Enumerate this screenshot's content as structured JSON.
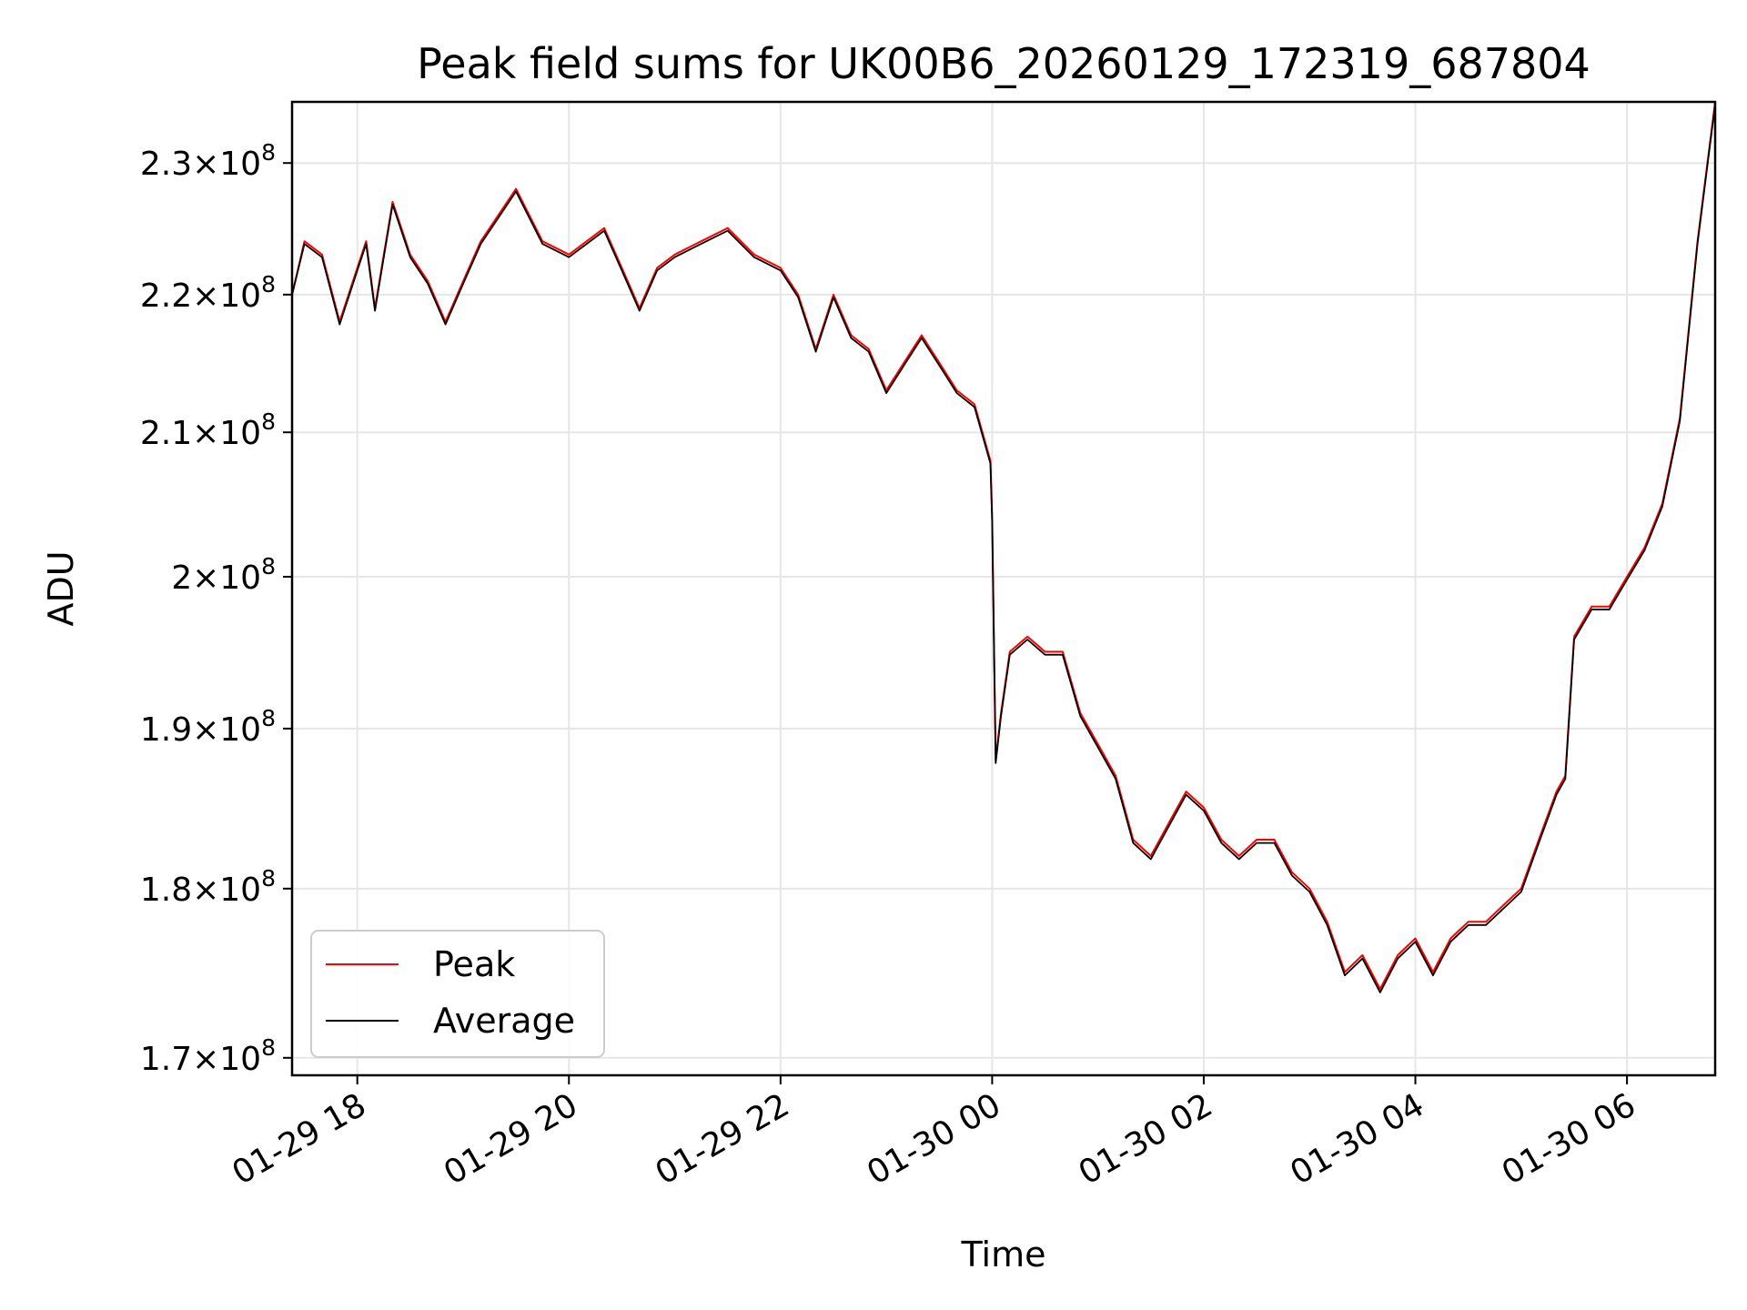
{
  "chart_data": {
    "type": "line",
    "title": "Peak field sums for UK00B6_20260129_172319_687804",
    "xlabel": "Time",
    "ylabel": "ADU",
    "yscale": "log",
    "grid": true,
    "legend_placement": "lower-left",
    "xlim": [
      "2026-01-29 17:23",
      "2026-01-30 06:50"
    ],
    "ylim": [
      169000000,
      234800000
    ],
    "x_ticks": [
      {
        "value": "2026-01-29 18:00",
        "label": "01-29 18"
      },
      {
        "value": "2026-01-29 20:00",
        "label": "01-29 20"
      },
      {
        "value": "2026-01-29 22:00",
        "label": "01-29 22"
      },
      {
        "value": "2026-01-30 00:00",
        "label": "01-30 00"
      },
      {
        "value": "2026-01-30 02:00",
        "label": "01-30 02"
      },
      {
        "value": "2026-01-30 04:00",
        "label": "01-30 04"
      },
      {
        "value": "2026-01-30 06:00",
        "label": "01-30 06"
      }
    ],
    "y_ticks": [
      {
        "value": 170000000,
        "mantissa": "1.7",
        "exponent": "8"
      },
      {
        "value": 180000000,
        "mantissa": "1.8",
        "exponent": "8"
      },
      {
        "value": 190000000,
        "mantissa": "1.9",
        "exponent": "8"
      },
      {
        "value": 200000000,
        "mantissa": "2",
        "exponent": "8"
      },
      {
        "value": 210000000,
        "mantissa": "2.1",
        "exponent": "8"
      },
      {
        "value": 220000000,
        "mantissa": "2.2",
        "exponent": "8"
      },
      {
        "value": 230000000,
        "mantissa": "2.3",
        "exponent": "8"
      }
    ],
    "times_prefix_note": "x values are timestamps",
    "x": [
      "2026-01-29 17:23",
      "2026-01-29 17:30",
      "2026-01-29 17:40",
      "2026-01-29 17:50",
      "2026-01-29 18:00",
      "2026-01-29 18:05",
      "2026-01-29 18:10",
      "2026-01-29 18:15",
      "2026-01-29 18:20",
      "2026-01-29 18:30",
      "2026-01-29 18:40",
      "2026-01-29 18:50",
      "2026-01-29 19:00",
      "2026-01-29 19:10",
      "2026-01-29 19:20",
      "2026-01-29 19:30",
      "2026-01-29 19:45",
      "2026-01-29 20:00",
      "2026-01-29 20:10",
      "2026-01-29 20:20",
      "2026-01-29 20:30",
      "2026-01-29 20:40",
      "2026-01-29 20:50",
      "2026-01-29 21:00",
      "2026-01-29 21:15",
      "2026-01-29 21:30",
      "2026-01-29 21:45",
      "2026-01-29 22:00",
      "2026-01-29 22:10",
      "2026-01-29 22:20",
      "2026-01-29 22:30",
      "2026-01-29 22:40",
      "2026-01-29 22:50",
      "2026-01-29 23:00",
      "2026-01-29 23:10",
      "2026-01-29 23:20",
      "2026-01-29 23:30",
      "2026-01-29 23:40",
      "2026-01-29 23:50",
      "2026-01-29 23:59",
      "2026-01-30 00:00",
      "2026-01-30 00:02",
      "2026-01-30 00:05",
      "2026-01-30 00:10",
      "2026-01-30 00:20",
      "2026-01-30 00:30",
      "2026-01-30 00:40",
      "2026-01-30 00:50",
      "2026-01-30 01:00",
      "2026-01-30 01:10",
      "2026-01-30 01:20",
      "2026-01-30 01:30",
      "2026-01-30 01:40",
      "2026-01-30 01:50",
      "2026-01-30 02:00",
      "2026-01-30 02:10",
      "2026-01-30 02:20",
      "2026-01-30 02:30",
      "2026-01-30 02:40",
      "2026-01-30 02:50",
      "2026-01-30 03:00",
      "2026-01-30 03:10",
      "2026-01-30 03:20",
      "2026-01-30 03:30",
      "2026-01-30 03:40",
      "2026-01-30 03:50",
      "2026-01-30 04:00",
      "2026-01-30 04:10",
      "2026-01-30 04:20",
      "2026-01-30 04:30",
      "2026-01-30 04:40",
      "2026-01-30 04:50",
      "2026-01-30 05:00",
      "2026-01-30 05:10",
      "2026-01-30 05:20",
      "2026-01-30 05:25",
      "2026-01-30 05:30",
      "2026-01-30 05:40",
      "2026-01-30 05:50",
      "2026-01-30 06:00",
      "2026-01-30 06:10",
      "2026-01-30 06:20",
      "2026-01-30 06:30",
      "2026-01-30 06:40",
      "2026-01-30 06:50"
    ],
    "series": [
      {
        "name": "Peak",
        "color": "#ff0000",
        "values": [
          220000000,
          224000000,
          223000000,
          218000000,
          222000000,
          224000000,
          219000000,
          223000000,
          227000000,
          223000000,
          221000000,
          218000000,
          221000000,
          224000000,
          226000000,
          228000000,
          224000000,
          223000000,
          224000000,
          225000000,
          222000000,
          219000000,
          222000000,
          223000000,
          224000000,
          225000000,
          223000000,
          222000000,
          220000000,
          216000000,
          220000000,
          217000000,
          216000000,
          213000000,
          215000000,
          217000000,
          215000000,
          213000000,
          212000000,
          208000000,
          204000000,
          188000000,
          191000000,
          195000000,
          196000000,
          195000000,
          195000000,
          191000000,
          189000000,
          187000000,
          183000000,
          182000000,
          184000000,
          186000000,
          185000000,
          183000000,
          182000000,
          183000000,
          183000000,
          181000000,
          180000000,
          178000000,
          175000000,
          176000000,
          174000000,
          176000000,
          177000000,
          175000000,
          177000000,
          178000000,
          178000000,
          179000000,
          180000000,
          183000000,
          186000000,
          187000000,
          196000000,
          198000000,
          198000000,
          200000000,
          202000000,
          205000000,
          211000000,
          224000000,
          234800000
        ]
      },
      {
        "name": "Average",
        "color": "#000000",
        "values": [
          220000000,
          223800000,
          222800000,
          217800000,
          221800000,
          223800000,
          218800000,
          222800000,
          226800000,
          222800000,
          220800000,
          217800000,
          220800000,
          223800000,
          225800000,
          227800000,
          223800000,
          222800000,
          223800000,
          224800000,
          221800000,
          218800000,
          221800000,
          222800000,
          223800000,
          224800000,
          222800000,
          221800000,
          219800000,
          215800000,
          219800000,
          216800000,
          215800000,
          212800000,
          214800000,
          216800000,
          214800000,
          212800000,
          211800000,
          207800000,
          203800000,
          187800000,
          190800000,
          194800000,
          195800000,
          194800000,
          194800000,
          190800000,
          188800000,
          186800000,
          182800000,
          181800000,
          183800000,
          185800000,
          184800000,
          182800000,
          181800000,
          182800000,
          182800000,
          180800000,
          179800000,
          177800000,
          174800000,
          175800000,
          173800000,
          175800000,
          176800000,
          174800000,
          176800000,
          177800000,
          177800000,
          178800000,
          179800000,
          182800000,
          185800000,
          186800000,
          195800000,
          197800000,
          197800000,
          199800000,
          201800000,
          204800000,
          210800000,
          223800000,
          234600000
        ]
      }
    ]
  }
}
